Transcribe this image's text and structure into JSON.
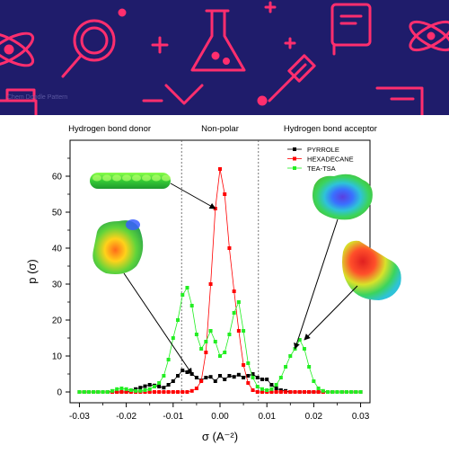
{
  "banner": {
    "caption": "Chem Doodle Pattern",
    "colors": {
      "background": "#1f1c6b",
      "doodle": "#ff2e6e"
    }
  },
  "chart_data": {
    "type": "scatter",
    "xlabel": "σ (A⁻²)",
    "ylabel": "p (σ)",
    "xlim": [
      -0.032,
      0.032
    ],
    "ylim": [
      -3,
      70
    ],
    "xticks": [
      -0.03,
      -0.02,
      -0.01,
      0.0,
      0.01,
      0.02,
      0.03
    ],
    "xtick_labels": [
      "-0.03",
      "-0.02",
      "-0.01",
      "0.00",
      "0.01",
      "0.02",
      "0.03"
    ],
    "yticks": [
      0,
      10,
      20,
      30,
      40,
      50,
      60
    ],
    "ytick_labels": [
      "0",
      "10",
      "20",
      "30",
      "40",
      "50",
      "60"
    ],
    "region_dividers": [
      -0.0082,
      0.0082
    ],
    "regions": [
      {
        "label": "Hydrogen bond donor"
      },
      {
        "label": "Non-polar"
      },
      {
        "label": "Hydrogen bond acceptor"
      }
    ],
    "legend_position": "top-right",
    "series": [
      {
        "name": "PYRROLE",
        "color": "#000000",
        "x": [
          -0.03,
          -0.029,
          -0.028,
          -0.027,
          -0.026,
          -0.025,
          -0.024,
          -0.023,
          -0.022,
          -0.021,
          -0.02,
          -0.019,
          -0.018,
          -0.017,
          -0.016,
          -0.015,
          -0.014,
          -0.013,
          -0.012,
          -0.011,
          -0.01,
          -0.009,
          -0.008,
          -0.007,
          -0.006,
          -0.005,
          -0.004,
          -0.003,
          -0.002,
          -0.001,
          0.0,
          0.001,
          0.002,
          0.003,
          0.004,
          0.005,
          0.006,
          0.007,
          0.008,
          0.009,
          0.01,
          0.011,
          0.012,
          0.013,
          0.014,
          0.015,
          0.016,
          0.017,
          0.018,
          0.019,
          0.02,
          0.021,
          0.022,
          0.023,
          0.024,
          0.025,
          0.026,
          0.027,
          0.028,
          0.029,
          0.03
        ],
        "y": [
          0,
          0,
          0,
          0,
          0,
          0,
          0,
          0,
          0,
          0,
          0,
          0.3,
          0.8,
          1.2,
          1.6,
          2.0,
          1.8,
          1.5,
          1.2,
          2.0,
          3.0,
          4.5,
          6.0,
          5.5,
          5.0,
          4.0,
          3.2,
          4.0,
          4.2,
          3.0,
          4.5,
          3.5,
          4.5,
          4.2,
          4.8,
          4.0,
          4.5,
          5.0,
          4.0,
          3.5,
          3.5,
          2.0,
          1.0,
          0.5,
          0.3,
          0,
          0,
          0,
          0,
          0,
          0,
          0,
          0,
          0,
          0,
          0,
          0,
          0,
          0,
          0,
          0
        ]
      },
      {
        "name": "HEXADECANE",
        "color": "#ff0000",
        "x": [
          -0.03,
          -0.029,
          -0.028,
          -0.027,
          -0.026,
          -0.025,
          -0.024,
          -0.023,
          -0.022,
          -0.021,
          -0.02,
          -0.019,
          -0.018,
          -0.017,
          -0.016,
          -0.015,
          -0.014,
          -0.013,
          -0.012,
          -0.011,
          -0.01,
          -0.009,
          -0.008,
          -0.007,
          -0.006,
          -0.005,
          -0.004,
          -0.003,
          -0.002,
          -0.001,
          0.0,
          0.001,
          0.002,
          0.003,
          0.004,
          0.005,
          0.006,
          0.007,
          0.008,
          0.009,
          0.01,
          0.011,
          0.012,
          0.013,
          0.014,
          0.015,
          0.016,
          0.017,
          0.018,
          0.019,
          0.02,
          0.021,
          0.022,
          0.023,
          0.024,
          0.025,
          0.026,
          0.027,
          0.028,
          0.029,
          0.03
        ],
        "y": [
          0,
          0,
          0,
          0,
          0,
          0,
          0,
          0,
          0,
          0,
          0,
          0,
          0,
          0,
          0,
          0,
          0,
          0,
          0,
          0,
          0,
          0,
          0,
          0,
          0.3,
          1.0,
          3.0,
          11.0,
          30.0,
          51.0,
          62.0,
          55.0,
          40.0,
          28.0,
          17.0,
          7.5,
          2.5,
          0.5,
          0,
          0,
          0,
          0,
          0,
          0,
          0,
          0,
          0,
          0,
          0,
          0,
          0,
          0,
          0,
          0,
          0,
          0,
          0,
          0,
          0,
          0,
          0
        ]
      },
      {
        "name": "TEA-TSA",
        "color": "#22ee22",
        "x": [
          -0.03,
          -0.029,
          -0.028,
          -0.027,
          -0.026,
          -0.025,
          -0.024,
          -0.023,
          -0.022,
          -0.021,
          -0.02,
          -0.019,
          -0.018,
          -0.017,
          -0.016,
          -0.015,
          -0.014,
          -0.013,
          -0.012,
          -0.011,
          -0.01,
          -0.009,
          -0.008,
          -0.007,
          -0.006,
          -0.005,
          -0.004,
          -0.003,
          -0.002,
          -0.001,
          0.0,
          0.001,
          0.002,
          0.003,
          0.004,
          0.005,
          0.006,
          0.007,
          0.008,
          0.009,
          0.01,
          0.011,
          0.012,
          0.013,
          0.014,
          0.015,
          0.016,
          0.017,
          0.018,
          0.019,
          0.02,
          0.021,
          0.022,
          0.023,
          0.024,
          0.025,
          0.026,
          0.027,
          0.028,
          0.029,
          0.03
        ],
        "y": [
          0,
          0,
          0,
          0,
          0,
          0,
          0,
          0.3,
          0.8,
          1.0,
          0.8,
          0.5,
          0.3,
          0.3,
          0.5,
          0.8,
          1.5,
          2.5,
          4.5,
          9.0,
          15.0,
          20.0,
          27.0,
          29.0,
          24.0,
          16.0,
          12.0,
          14.0,
          17.0,
          14.0,
          10.0,
          11.0,
          16.0,
          22.0,
          25.0,
          17.0,
          8.0,
          4.0,
          1.5,
          0.8,
          0.5,
          0.8,
          2.0,
          4.0,
          7.0,
          10.0,
          12.0,
          14.5,
          12.0,
          7.0,
          3.0,
          1.0,
          0.3,
          0,
          0,
          0,
          0,
          0,
          0,
          0,
          0
        ]
      }
    ],
    "molecule_insets": [
      {
        "name": "HEXADECANE",
        "points_to": [
          -0.001,
          51
        ]
      },
      {
        "name": "PYRROLE",
        "points_to": [
          -0.006,
          5
        ]
      },
      {
        "name": "TEA-TSA",
        "points_to": [
          0.016,
          12
        ]
      },
      {
        "name": "TEA-TSA-complex",
        "points_to": [
          0.018,
          14.5
        ]
      }
    ]
  }
}
